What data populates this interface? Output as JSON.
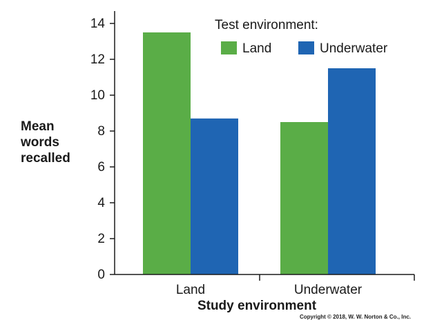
{
  "chart_data": {
    "type": "bar",
    "title": "",
    "xlabel": "Study environment",
    "ylabel_lines": [
      "Mean",
      "words",
      "recalled"
    ],
    "categories": [
      "Land",
      "Underwater"
    ],
    "legend_title": "Test environment:",
    "series": [
      {
        "name": "Land",
        "color": "#5aad47",
        "values": [
          13.5,
          8.5
        ]
      },
      {
        "name": "Underwater",
        "color": "#1f65b3",
        "values": [
          8.7,
          11.5
        ]
      }
    ],
    "ylim": [
      0,
      14
    ],
    "yticks": [
      "0",
      "2",
      "4",
      "6",
      "8",
      "10",
      "12",
      "14"
    ],
    "legend_position": "top-right",
    "grid": false
  },
  "copyright": "Copyright © 2018, W. W. Norton & Co., Inc."
}
